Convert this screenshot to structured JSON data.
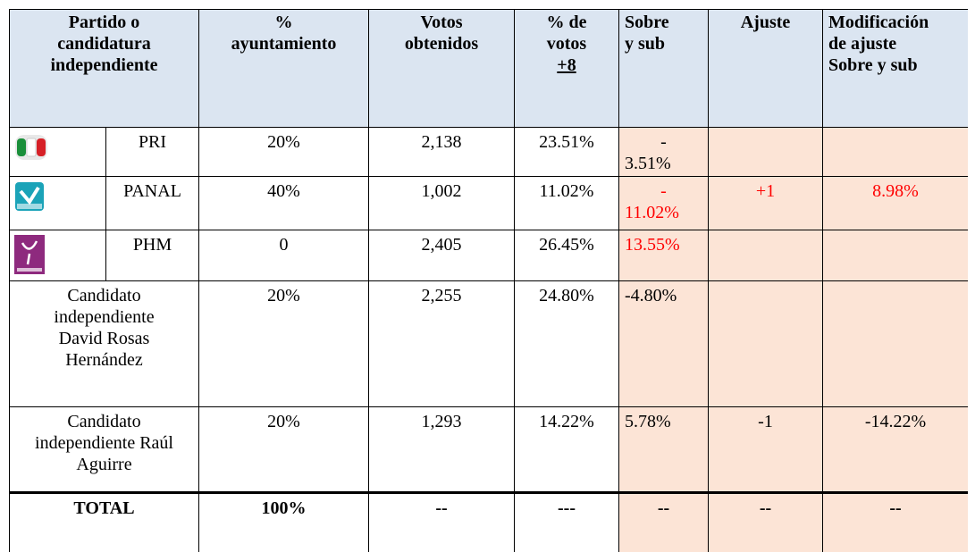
{
  "table": {
    "header": [
      "Partido o\ncandidatura\nindependiente",
      "%\nayuntamiento",
      "Votos\nobtenidos",
      {
        "text": "% de\nvotos",
        "note": "+8"
      },
      "Sobre\ny sub",
      "Ajuste",
      "Modificación\nde ajuste\nSobre y sub"
    ],
    "rows": [
      {
        "party": "PRI",
        "ayuntamiento": "20%",
        "votos": "2,138",
        "porcentaje": "23.51%",
        "sobre": [
          "-",
          "3.51%"
        ]
      },
      {
        "party": "PANAL",
        "ayuntamiento": "40%",
        "votos": "1,002",
        "porcentaje": "11.02%",
        "sobre": [
          "-",
          "11.02%"
        ],
        "ajuste": "+1",
        "modificacion": "8.98%",
        "red": [
          "sobre",
          "ajuste",
          "modificacion"
        ]
      },
      {
        "party": "PHM",
        "ayuntamiento": "0",
        "votos": "2,405",
        "porcentaje": "26.45%",
        "sobre": "13.55%",
        "red": [
          "sobre"
        ]
      },
      {
        "candidate": "Candidato independiente David Rosas Hernández",
        "ayuntamiento": "20%",
        "votos": "2,255",
        "porcentaje": "24.80%",
        "sobre": "-4.80%"
      },
      {
        "candidate": "Candidato independiente Raúl Aguirre",
        "ayuntamiento": "20%",
        "votos": "1,293",
        "porcentaje": "14.22%",
        "sobre": "5.78%",
        "ajuste": "-1",
        "modificacion": "-14.22%"
      },
      {
        "total": "TOTAL",
        "ayuntamiento": "100%",
        "votos": "--",
        "porcentaje": "---",
        "sobre": "--",
        "ajuste": "--",
        "modificacion": "--"
      }
    ]
  }
}
